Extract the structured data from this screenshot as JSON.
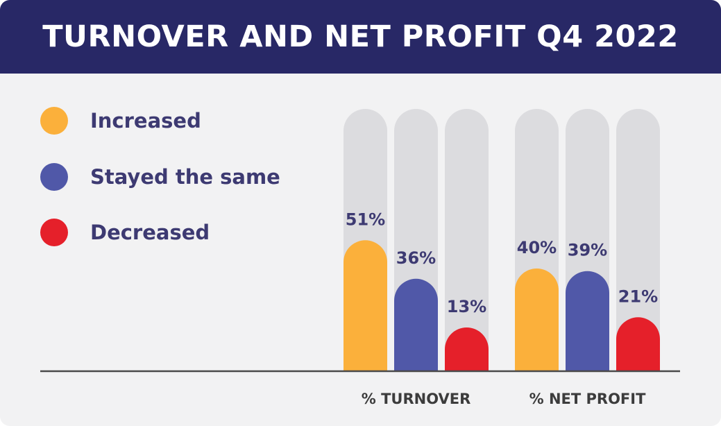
{
  "header": {
    "title": "TURNOVER AND NET PROFIT Q4 2022"
  },
  "colors": {
    "header_bg": "#282866",
    "card_bg": "#f2f2f3",
    "track": "#dcdcdf",
    "text_accent": "#3d3a72",
    "axis": "#4a4a4a"
  },
  "legend": [
    {
      "label": "Increased",
      "color": "#fbb03b"
    },
    {
      "label": "Stayed the same",
      "color": "#5058a8"
    },
    {
      "label": "Decreased",
      "color": "#e5202a"
    }
  ],
  "chart_data": {
    "type": "bar",
    "categories": [
      "% TURNOVER",
      "% NET PROFIT"
    ],
    "series": [
      {
        "name": "Increased",
        "values": [
          51,
          40
        ],
        "labels": [
          "51%",
          "40%"
        ],
        "color": "#fbb03b"
      },
      {
        "name": "Stayed the same",
        "values": [
          36,
          39
        ],
        "labels": [
          "36%",
          "39%"
        ],
        "color": "#5058a8"
      },
      {
        "name": "Decreased",
        "values": [
          13,
          21
        ],
        "labels": [
          "13%",
          "21%"
        ],
        "color": "#e5202a"
      }
    ],
    "ylim": [
      0,
      100
    ],
    "legend_position": "left",
    "grid": false
  }
}
